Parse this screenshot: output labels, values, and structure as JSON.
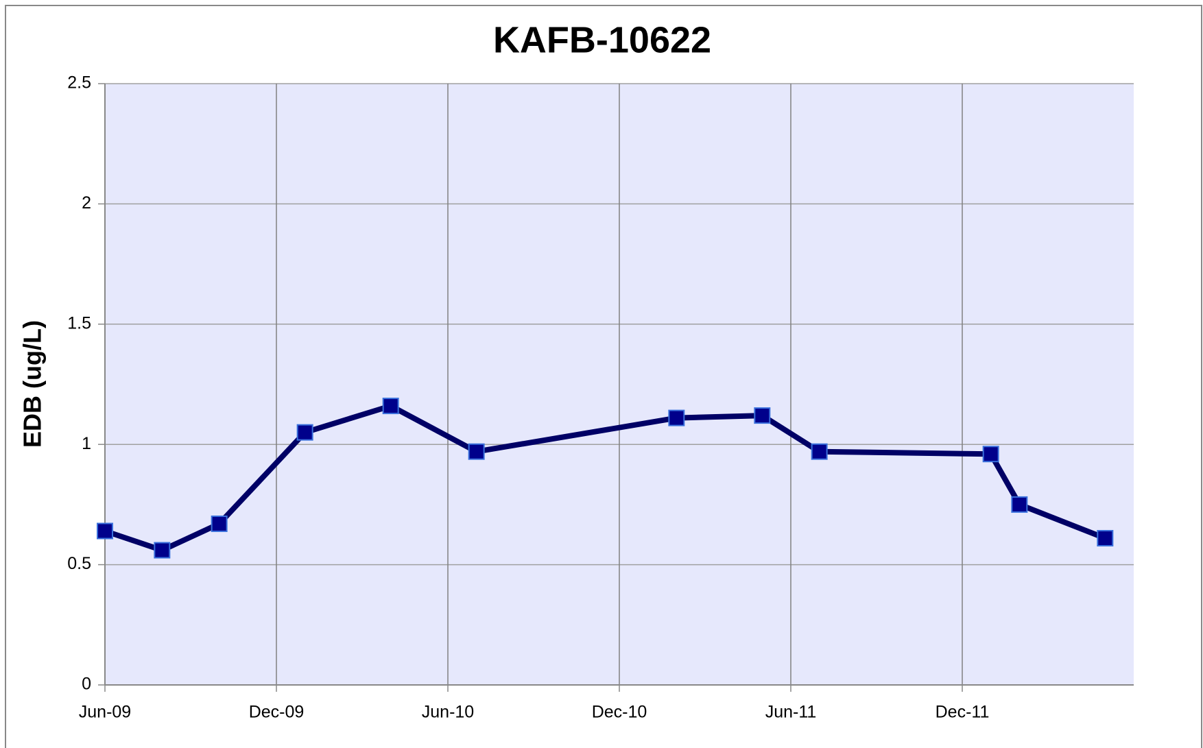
{
  "chart_data": {
    "type": "line",
    "title": "KAFB-10622",
    "y_label": "EDB (ug/L)",
    "x": [
      "2009-06",
      "2009-08",
      "2009-10",
      "2010-01",
      "2010-04",
      "2010-07",
      "2011-02",
      "2011-05",
      "2011-07",
      "2012-01",
      "2012-02",
      "2012-05"
    ],
    "series": [
      {
        "name": "KAFB-10622",
        "color": "#000066",
        "marker_color": "#00008b",
        "values": [
          0.64,
          0.56,
          0.67,
          1.05,
          1.16,
          0.97,
          1.11,
          1.12,
          0.97,
          0.96,
          0.75,
          0.61
        ]
      }
    ],
    "xlim": [
      "2009-06",
      "2012-06"
    ],
    "xticks": [
      {
        "value": "2009-06",
        "label": "Jun-09"
      },
      {
        "value": "2009-12",
        "label": "Dec-09"
      },
      {
        "value": "2010-06",
        "label": "Jun-10"
      },
      {
        "value": "2010-12",
        "label": "Dec-10"
      },
      {
        "value": "2011-06",
        "label": "Jun-11"
      },
      {
        "value": "2011-12",
        "label": "Dec-11"
      }
    ],
    "ylim": [
      0,
      2.5
    ],
    "yticks": [
      0,
      0.5,
      1,
      1.5,
      2,
      2.5
    ],
    "grid": true
  }
}
